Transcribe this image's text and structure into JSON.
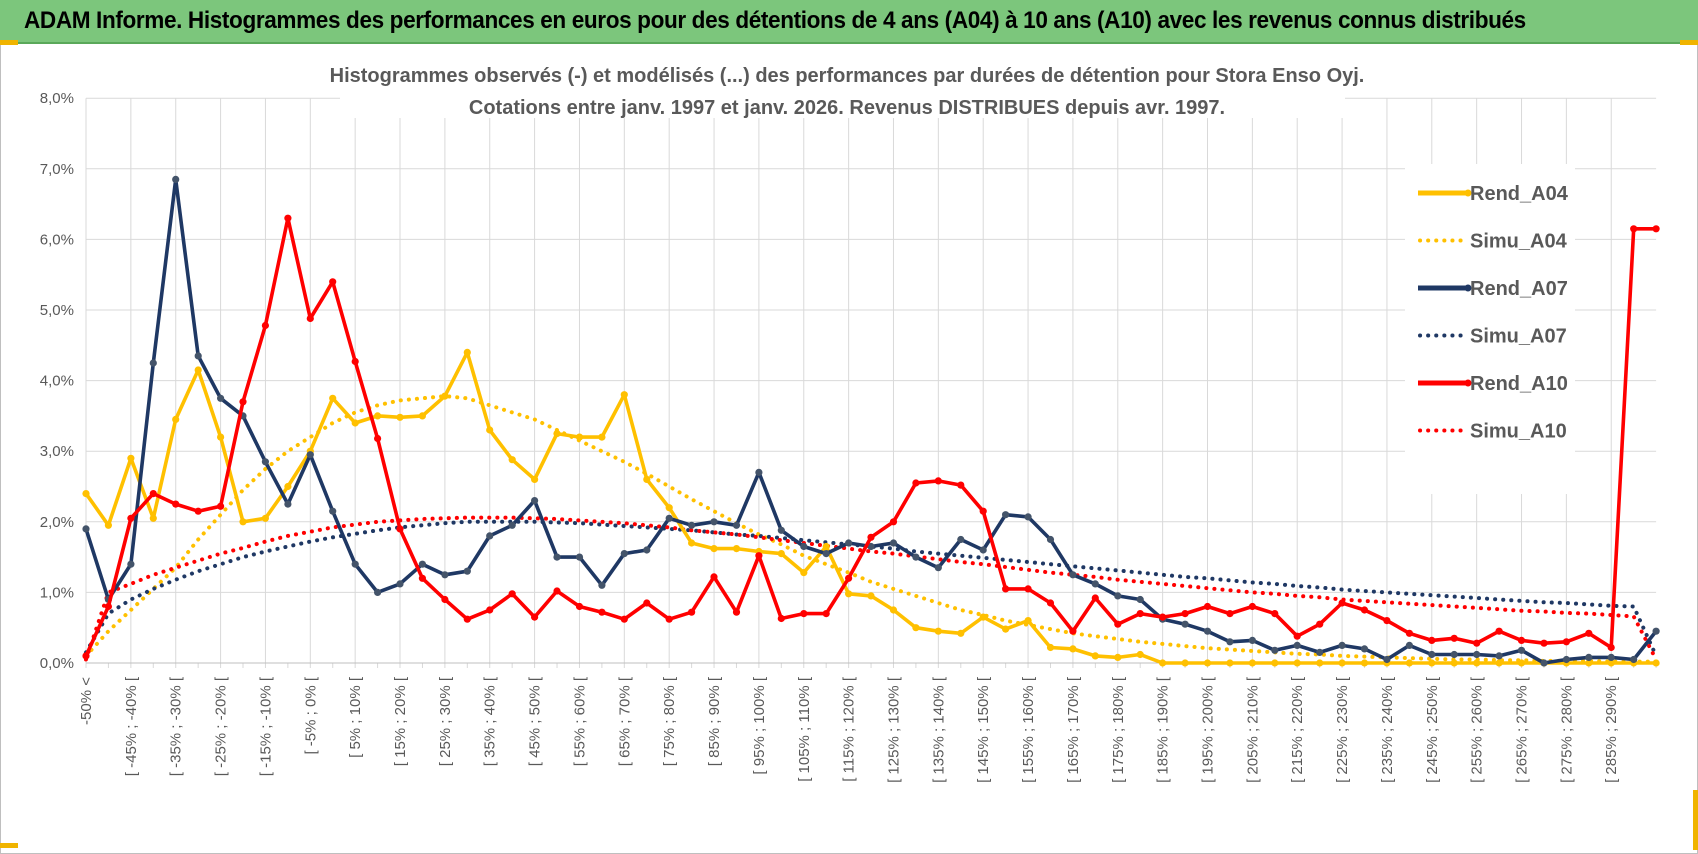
{
  "banner": {
    "text": "ADAM Informe. Histogrammes des performances en euros pour des détentions de 4 ans (A04) à 10 ans (A10) avec les revenus connus distribués"
  },
  "colors": {
    "A04": "#ffc000",
    "A07": "#1f3864",
    "A10": "#ff0000",
    "banner": "#7cc67c",
    "grid": "#d9d9d9",
    "text": "#595959"
  },
  "chart_data": {
    "type": "line",
    "title": [
      "Histogrammes observés (-) et modélisés (...) des performances par durées de détention pour Stora Enso Oyj.",
      "Cotations entre janv. 1997 et janv. 2026. Revenus DISTRIBUES depuis avr. 1997."
    ],
    "ylim": [
      0,
      8
    ],
    "yticks": [
      "0,0%",
      "1,0%",
      "2,0%",
      "3,0%",
      "4,0%",
      "5,0%",
      "6,0%",
      "7,0%",
      "8,0%"
    ],
    "grid": true,
    "legend_position": "right",
    "categories": [
      "-50% <",
      "[ -50% ; -45% [",
      "[ -45% ; -40% [",
      "[ -40% ; -35% [",
      "[ -35% ; -30% [",
      "[ -30% ; -25% [",
      "[ -25% ; -20% [",
      "[ -20% ; -15% [",
      "[ -15% ; -10% [",
      "[ -10% ; -5% [",
      "[ -5% ; 0% [",
      "[ 0% ; 5% [",
      "[ 5% ; 10% [",
      "[ 10% ; 15% [",
      "[ 15% ; 20% [",
      "[ 20% ; 25% [",
      "[ 25% ; 30% [",
      "[ 30% ; 35% [",
      "[ 35% ; 40% [",
      "[ 40% ; 45% [",
      "[ 45% ; 50% [",
      "[ 50% ; 55% [",
      "[ 55% ; 60% [",
      "[ 60% ; 65% [",
      "[ 65% ; 70% [",
      "[ 70% ; 75% [",
      "[ 75% ; 80% [",
      "[ 80% ; 85% [",
      "[ 85% ; 90% [",
      "[ 90% ; 95% [",
      "[ 95% ; 100% [",
      "[ 100% ; 105% [",
      "[ 105% ; 110% [",
      "[ 110% ; 115% [",
      "[ 115% ; 120% [",
      "[ 120% ; 125% [",
      "[ 125% ; 130% [",
      "[ 130% ; 135% [",
      "[ 135% ; 140% [",
      "[ 140% ; 145% [",
      "[ 145% ; 150% [",
      "[ 150% ; 155% [",
      "[ 155% ; 160% [",
      "[ 160% ; 165% [",
      "[ 165% ; 170% [",
      "[ 170% ; 175% [",
      "[ 175% ; 180% [",
      "[ 180% ; 185% [",
      "[ 185% ; 190% [",
      "[ 190% ; 195% [",
      "[ 195% ; 200% [",
      "[ 200% ; 205% [",
      "[ 205% ; 210% [",
      "[ 210% ; 215% [",
      "[ 215% ; 220% [",
      "[ 220% ; 225% [",
      "[ 225% ; 230% [",
      "[ 230% ; 235% [",
      "[ 235% ; 240% [",
      "[ 240% ; 245% [",
      "[ 245% ; 250% [",
      "[ 250% ; 255% [",
      "[ 255% ; 260% [",
      "[ 260% ; 265% [",
      "[ 265% ; 270% [",
      "[ 270% ; 275% [",
      "[ 275% ; 280% [",
      "[ 280% ; 285% [",
      "[ 285% ; 290% [",
      "[ 290% ; 295% [",
      "295% >"
    ],
    "visible_tick_labels": [
      "-50% <",
      "[ -45% ; -40% [",
      "[ -35% ; -30% [",
      "[ -25% ; -20% [",
      "[ -15% ; -10% [",
      "[ -5% ; 0% [",
      "[ 5% ; 10% [",
      "[ 15% ; 20% [",
      "[ 25% ; 30% [",
      "[ 35% ; 40% [",
      "[ 45% ; 50% [",
      "[ 55% ; 60% [",
      "[ 65% ; 70% [",
      "[ 75% ; 80% [",
      "[ 85% ; 90% [",
      "[ 95% ; 100% [",
      "[ 105% ; 110% [",
      "[ 115% ; 120% [",
      "[ 125% ; 130% [",
      "[ 135% ; 140% [",
      "[ 145% ; 150% [",
      "[ 155% ; 160% [",
      "[ 165% ; 170% [",
      "[ 175% ; 180% [",
      "[ 185% ; 190% [",
      "[ 195% ; 200% [",
      "[ 205% ; 210% [",
      "[ 215% ; 220% [",
      "[ 225% ; 230% [",
      "[ 235% ; 240% [",
      "[ 245% ; 250% [",
      "[ 255% ; 260% [",
      "[ 265% ; 270% [",
      "[ 275% ; 280% [",
      "[ 285% ; 290% ["
    ],
    "series": [
      {
        "name": "Rend_A04",
        "style": "solid",
        "color": "#ffc000",
        "values": [
          2.4,
          1.95,
          2.9,
          2.05,
          3.45,
          4.15,
          3.2,
          2.0,
          2.05,
          2.5,
          3.0,
          3.75,
          3.4,
          3.5,
          3.48,
          3.5,
          3.78,
          4.4,
          3.3,
          2.88,
          2.6,
          3.25,
          3.2,
          3.2,
          3.8,
          2.6,
          2.2,
          1.7,
          1.62,
          1.62,
          1.58,
          1.55,
          1.28,
          1.65,
          0.98,
          0.95,
          0.75,
          0.5,
          0.45,
          0.42,
          0.65,
          0.48,
          0.6,
          0.22,
          0.2,
          0.1,
          0.08,
          0.12,
          0,
          0,
          0,
          0,
          0,
          0,
          0,
          0,
          0,
          0,
          0,
          0,
          0,
          0,
          0,
          0,
          0,
          0,
          0,
          0,
          0,
          0,
          0
        ]
      },
      {
        "name": "Simu_A04",
        "style": "dotted",
        "color": "#ffc000",
        "values": [
          0.1,
          0.45,
          0.75,
          1.05,
          1.35,
          1.75,
          2.1,
          2.45,
          2.75,
          3.0,
          3.2,
          3.4,
          3.55,
          3.65,
          3.72,
          3.75,
          3.78,
          3.75,
          3.65,
          3.55,
          3.45,
          3.3,
          3.15,
          3.0,
          2.85,
          2.68,
          2.5,
          2.32,
          2.15,
          1.98,
          1.82,
          1.68,
          1.52,
          1.4,
          1.28,
          1.15,
          1.05,
          0.95,
          0.85,
          0.75,
          0.68,
          0.6,
          0.54,
          0.48,
          0.42,
          0.38,
          0.34,
          0.3,
          0.27,
          0.24,
          0.21,
          0.19,
          0.17,
          0.15,
          0.13,
          0.12,
          0.1,
          0.09,
          0.08,
          0.07,
          0.06,
          0.05,
          0.05,
          0.04,
          0.04,
          0.03,
          0.03,
          0.03,
          0.02,
          0.02,
          0.02
        ]
      },
      {
        "name": "Rend_A07",
        "style": "solid",
        "color": "#1f3864",
        "values": [
          1.9,
          0.9,
          1.4,
          4.25,
          6.85,
          4.35,
          3.75,
          3.5,
          2.85,
          2.25,
          2.95,
          2.15,
          1.4,
          1.0,
          1.12,
          1.4,
          1.25,
          1.3,
          1.8,
          1.95,
          2.3,
          1.5,
          1.5,
          1.1,
          1.55,
          1.6,
          2.05,
          1.95,
          2.0,
          1.95,
          2.7,
          1.88,
          1.65,
          1.55,
          1.7,
          1.65,
          1.7,
          1.5,
          1.35,
          1.75,
          1.6,
          2.1,
          2.07,
          1.75,
          1.25,
          1.12,
          0.95,
          0.9,
          0.62,
          0.55,
          0.45,
          0.3,
          0.32,
          0.18,
          0.25,
          0.15,
          0.25,
          0.2,
          0.05,
          0.25,
          0.12,
          0.12,
          0.12,
          0.1,
          0.18,
          0.0,
          0.05,
          0.08,
          0.08,
          0.05,
          0.45
        ]
      },
      {
        "name": "Simu_A07",
        "style": "dotted",
        "color": "#1f3864",
        "values": [
          0.15,
          0.7,
          0.9,
          1.05,
          1.18,
          1.3,
          1.4,
          1.5,
          1.58,
          1.65,
          1.72,
          1.78,
          1.83,
          1.88,
          1.92,
          1.95,
          1.98,
          2.0,
          2.0,
          2.0,
          2.0,
          1.99,
          1.98,
          1.96,
          1.94,
          1.92,
          1.9,
          1.88,
          1.85,
          1.82,
          1.8,
          1.77,
          1.74,
          1.71,
          1.68,
          1.65,
          1.62,
          1.58,
          1.55,
          1.52,
          1.49,
          1.46,
          1.43,
          1.4,
          1.37,
          1.34,
          1.31,
          1.28,
          1.25,
          1.22,
          1.2,
          1.17,
          1.14,
          1.12,
          1.09,
          1.07,
          1.04,
          1.02,
          1.0,
          0.98,
          0.96,
          0.94,
          0.92,
          0.9,
          0.88,
          0.86,
          0.85,
          0.83,
          0.81,
          0.8,
          0.1
        ]
      },
      {
        "name": "Rend_A10",
        "style": "solid",
        "color": "#ff0000",
        "values": [
          0.1,
          0.8,
          2.05,
          2.4,
          2.25,
          2.15,
          2.22,
          3.7,
          4.78,
          6.3,
          4.88,
          5.4,
          4.27,
          3.18,
          1.9,
          1.2,
          0.9,
          0.62,
          0.75,
          0.98,
          0.65,
          1.02,
          0.8,
          0.72,
          0.62,
          0.85,
          0.62,
          0.72,
          1.22,
          0.72,
          1.52,
          0.63,
          0.7,
          0.7,
          1.2,
          1.78,
          2.0,
          2.55,
          2.58,
          2.52,
          2.15,
          1.05,
          1.05,
          0.85,
          0.45,
          0.92,
          0.55,
          0.7,
          0.65,
          0.7,
          0.8,
          0.7,
          0.8,
          0.7,
          0.38,
          0.55,
          0.85,
          0.75,
          0.6,
          0.42,
          0.32,
          0.35,
          0.28,
          0.45,
          0.32,
          0.28,
          0.3,
          0.42,
          0.22,
          6.15,
          6.15
        ]
      },
      {
        "name": "Simu_A10",
        "style": "dotted",
        "color": "#ff0000",
        "values": [
          0.05,
          1.0,
          1.12,
          1.25,
          1.35,
          1.45,
          1.55,
          1.63,
          1.72,
          1.8,
          1.86,
          1.92,
          1.96,
          2.0,
          2.02,
          2.04,
          2.05,
          2.06,
          2.06,
          2.06,
          2.05,
          2.04,
          2.02,
          2.0,
          1.98,
          1.95,
          1.92,
          1.88,
          1.85,
          1.82,
          1.78,
          1.74,
          1.7,
          1.66,
          1.62,
          1.58,
          1.55,
          1.51,
          1.47,
          1.43,
          1.4,
          1.36,
          1.32,
          1.28,
          1.25,
          1.22,
          1.18,
          1.15,
          1.12,
          1.09,
          1.06,
          1.03,
          1.0,
          0.98,
          0.95,
          0.93,
          0.9,
          0.88,
          0.86,
          0.84,
          0.82,
          0.8,
          0.78,
          0.76,
          0.74,
          0.73,
          0.71,
          0.7,
          0.68,
          0.66,
          0.05
        ]
      }
    ]
  }
}
